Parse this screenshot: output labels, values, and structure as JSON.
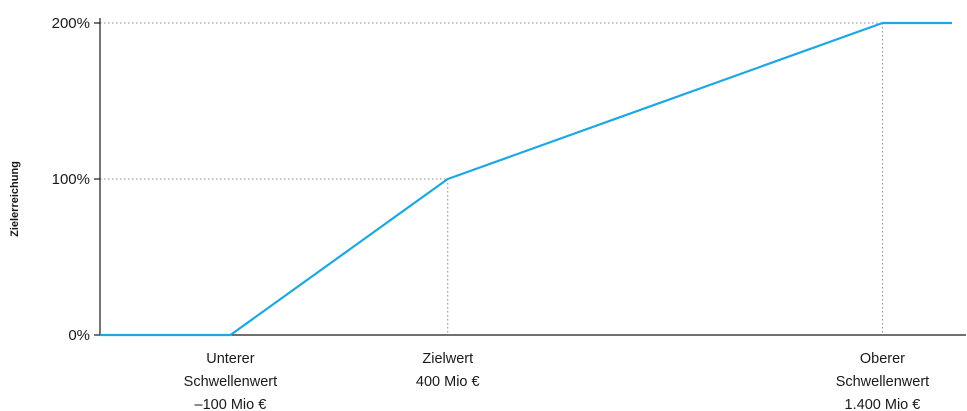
{
  "chart_data": {
    "type": "line",
    "title": "",
    "ylabel": "Zielerreichung",
    "xlabel": "",
    "y_tick_labels": [
      "0%",
      "100%",
      "200%"
    ],
    "y_ticks": [
      0,
      100,
      200
    ],
    "ylim": [
      0,
      200
    ],
    "x_unit": "Mio €",
    "xlim": [
      -400,
      1560
    ],
    "series": [
      {
        "x": [
          -400,
          -100,
          400,
          1400,
          1560
        ],
        "y": [
          0,
          0,
          100,
          200,
          200
        ],
        "color": "#1ea7e1"
      }
    ],
    "reference_points": [
      {
        "x": 400,
        "y": 100
      },
      {
        "x": 1400,
        "y": 200
      }
    ],
    "x_annotations": [
      {
        "x": -100,
        "lines": [
          "Unterer",
          "Schwellenwert",
          "–100 Mio €"
        ]
      },
      {
        "x": 400,
        "lines": [
          "Zielwert",
          "400 Mio €"
        ]
      },
      {
        "x": 1400,
        "lines": [
          "Oberer",
          "Schwellenwert",
          "1.400 Mio €"
        ]
      }
    ],
    "grid": false
  },
  "colors": {
    "line": "#1ea7e1",
    "axis": "#1a1a1a",
    "guide": "#8a8a8a"
  }
}
